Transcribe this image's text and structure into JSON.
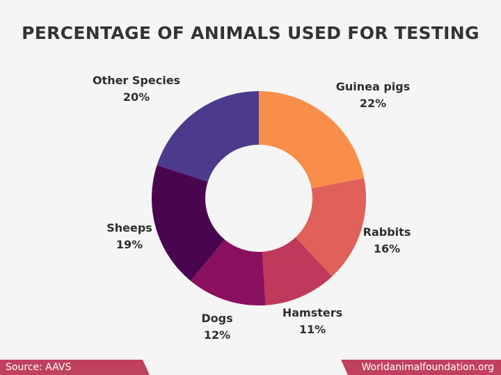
{
  "chart_data": {
    "type": "pie",
    "title": "PERCENTAGE OF ANIMALS USED FOR TESTING",
    "donut": true,
    "unit": "%",
    "slices": [
      {
        "label": "Guinea pigs",
        "value": 22,
        "display": "22%",
        "color": "#f98e4a"
      },
      {
        "label": "Rabbits",
        "value": 16,
        "display": "16%",
        "color": "#e0605a"
      },
      {
        "label": "Hamsters",
        "value": 11,
        "display": "11%",
        "color": "#c0395a"
      },
      {
        "label": "Dogs",
        "value": 12,
        "display": "12%",
        "color": "#8b1060"
      },
      {
        "label": "Sheeps",
        "value": 19,
        "display": "19%",
        "color": "#4a0550"
      },
      {
        "label": "Other Species",
        "value": 20,
        "display": "20%",
        "color": "#4c3a8c"
      }
    ]
  },
  "footer": {
    "source": "Source: AAVS",
    "site": "Worldanimalfoundation.org",
    "color": "#c0415e"
  }
}
